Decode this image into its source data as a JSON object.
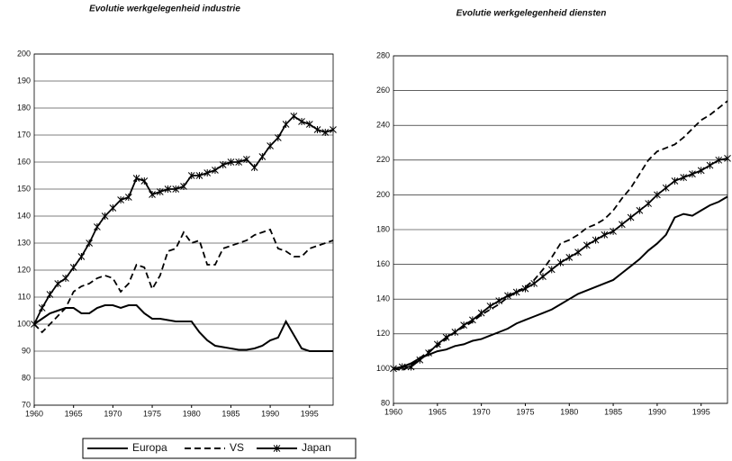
{
  "chart_data": [
    {
      "type": "line",
      "title": "Evolutie werkgelegenheid industrie",
      "x": [
        1960,
        1961,
        1962,
        1963,
        1964,
        1965,
        1966,
        1967,
        1968,
        1969,
        1970,
        1971,
        1972,
        1973,
        1974,
        1975,
        1976,
        1977,
        1978,
        1979,
        1980,
        1981,
        1982,
        1983,
        1984,
        1985,
        1986,
        1987,
        1988,
        1989,
        1990,
        1991,
        1992,
        1993,
        1994,
        1995,
        1996,
        1997,
        1998
      ],
      "xlim": [
        1960,
        1998
      ],
      "xticks": [
        1960,
        1965,
        1970,
        1975,
        1980,
        1985,
        1990,
        1995
      ],
      "ylim": [
        70,
        200
      ],
      "yticks": [
        70,
        80,
        90,
        100,
        110,
        120,
        130,
        140,
        150,
        160,
        170,
        180,
        190,
        200
      ],
      "grid": true,
      "series": [
        {
          "name": "Europa",
          "color": "#000000",
          "style": "solid",
          "values": [
            100,
            102,
            104,
            105,
            106,
            106,
            104,
            104,
            106,
            107,
            107,
            106,
            107,
            107,
            104,
            102,
            102,
            101.5,
            101,
            101,
            101,
            97,
            94,
            92,
            91.5,
            91,
            90.5,
            90.5,
            91,
            92,
            94,
            95,
            101,
            96,
            91,
            90,
            90,
            90,
            90
          ]
        },
        {
          "name": "VS",
          "color": "#000000",
          "style": "dashed",
          "values": [
            100,
            97,
            100,
            103,
            106,
            112,
            114,
            115,
            117,
            118,
            117,
            112,
            115,
            122,
            121,
            113,
            118,
            127,
            128,
            134,
            130,
            131,
            122,
            122,
            128,
            129,
            130,
            131,
            133,
            134,
            135,
            128,
            127,
            125,
            125,
            128,
            129,
            130,
            131
          ]
        },
        {
          "name": "Japan",
          "color": "#000000",
          "style": "star",
          "values": [
            100,
            106,
            111,
            115,
            117,
            121,
            125,
            130,
            136,
            140,
            143,
            146,
            147,
            154,
            153,
            148,
            149,
            150,
            150,
            151,
            155,
            155,
            156,
            157,
            159,
            160,
            160,
            161,
            158,
            162,
            166,
            169,
            174,
            177,
            175,
            174,
            172,
            171,
            172
          ]
        }
      ]
    },
    {
      "type": "line",
      "title": "Evolutie werkgelegenheid diensten",
      "x": [
        1960,
        1961,
        1962,
        1963,
        1964,
        1965,
        1966,
        1967,
        1968,
        1969,
        1970,
        1971,
        1972,
        1973,
        1974,
        1975,
        1976,
        1977,
        1978,
        1979,
        1980,
        1981,
        1982,
        1983,
        1984,
        1985,
        1986,
        1987,
        1988,
        1989,
        1990,
        1991,
        1992,
        1993,
        1994,
        1995,
        1996,
        1997,
        1998
      ],
      "xlim": [
        1960,
        1998
      ],
      "xticks": [
        1960,
        1965,
        1970,
        1975,
        1980,
        1985,
        1990,
        1995
      ],
      "ylim": [
        80,
        280
      ],
      "yticks": [
        80,
        100,
        120,
        140,
        160,
        180,
        200,
        220,
        240,
        260,
        280
      ],
      "grid": true,
      "series": [
        {
          "color": "#000000",
          "style": "solid",
          "values": [
            100,
            101,
            103,
            106,
            108,
            110,
            111,
            113,
            114,
            116,
            117,
            119,
            121,
            123,
            126,
            128,
            130,
            132,
            134,
            137,
            140,
            143,
            145,
            147,
            149,
            151,
            155,
            159,
            163,
            168,
            172,
            177,
            187,
            189,
            188,
            191,
            194,
            196,
            199
          ]
        },
        {
          "color": "#000000",
          "style": "dashed",
          "values": [
            100,
            99,
            102,
            106,
            110,
            113,
            117,
            121,
            124,
            127,
            131,
            134,
            137,
            141,
            144,
            147,
            151,
            157,
            164,
            172,
            174,
            177,
            181,
            183,
            186,
            191,
            198,
            204,
            212,
            220,
            225,
            227,
            229,
            233,
            238,
            243,
            246,
            250,
            254
          ]
        },
        {
          "color": "#000000",
          "style": "star",
          "values": [
            100,
            101,
            101,
            105,
            109,
            114,
            118,
            121,
            125,
            128,
            132,
            136,
            139,
            142,
            144,
            146,
            149,
            153,
            157,
            161,
            164,
            167,
            171,
            174,
            177,
            179,
            183,
            187,
            191,
            195,
            200,
            204,
            208,
            210,
            212,
            214,
            217,
            220,
            221
          ]
        }
      ]
    }
  ]
}
